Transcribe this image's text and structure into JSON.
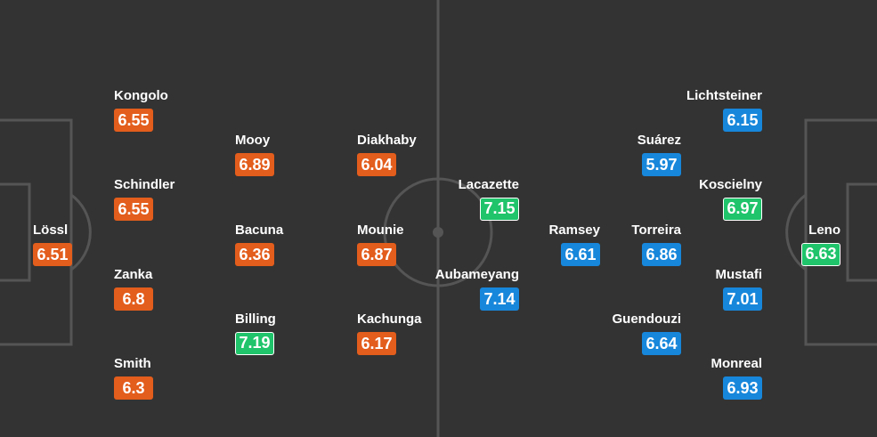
{
  "home": {
    "players": [
      {
        "name": "Lössl",
        "rating": "6.51",
        "color": "#e35d1c"
      },
      {
        "name": "Kongolo",
        "rating": "6.55",
        "color": "#e35d1c"
      },
      {
        "name": "Schindler",
        "rating": "6.55",
        "color": "#e35d1c"
      },
      {
        "name": "Zanka",
        "rating": "6.8",
        "color": "#e35d1c"
      },
      {
        "name": "Smith",
        "rating": "6.3",
        "color": "#e35d1c"
      },
      {
        "name": "Mooy",
        "rating": "6.89",
        "color": "#e35d1c"
      },
      {
        "name": "Bacuna",
        "rating": "6.36",
        "color": "#e35d1c"
      },
      {
        "name": "Billing",
        "rating": "7.19",
        "color": "#1fc46b"
      },
      {
        "name": "Diakhaby",
        "rating": "6.04",
        "color": "#e35d1c"
      },
      {
        "name": "Mounie",
        "rating": "6.87",
        "color": "#e35d1c"
      },
      {
        "name": "Kachunga",
        "rating": "6.17",
        "color": "#e35d1c"
      }
    ]
  },
  "away": {
    "players": [
      {
        "name": "Leno",
        "rating": "6.63",
        "color": "#1fc46b"
      },
      {
        "name": "Lichtsteiner",
        "rating": "6.15",
        "color": "#1787db"
      },
      {
        "name": "Koscielny",
        "rating": "6.97",
        "color": "#1fc46b"
      },
      {
        "name": "Mustafi",
        "rating": "7.01",
        "color": "#1787db"
      },
      {
        "name": "Monreal",
        "rating": "6.93",
        "color": "#1787db"
      },
      {
        "name": "Suárez",
        "rating": "5.97",
        "color": "#1787db"
      },
      {
        "name": "Torreira",
        "rating": "6.86",
        "color": "#1787db"
      },
      {
        "name": "Guendouzi",
        "rating": "6.64",
        "color": "#1787db"
      },
      {
        "name": "Ramsey",
        "rating": "6.61",
        "color": "#1787db"
      },
      {
        "name": "Lacazette",
        "rating": "7.15",
        "color": "#1fc46b"
      },
      {
        "name": "Aubameyang",
        "rating": "7.14",
        "color": "#1787db"
      }
    ]
  }
}
